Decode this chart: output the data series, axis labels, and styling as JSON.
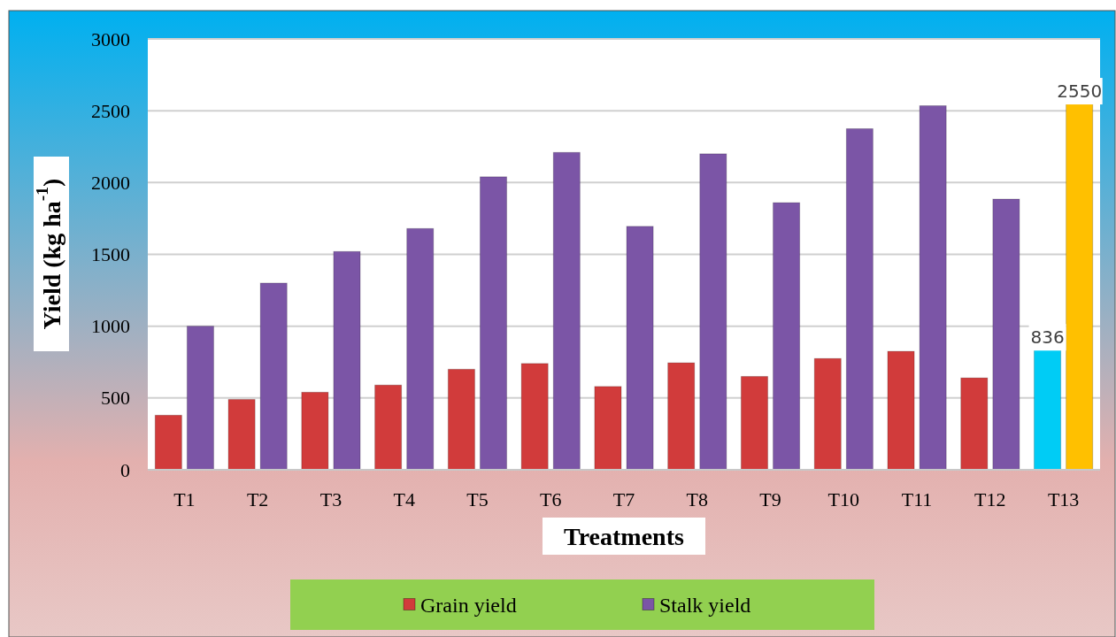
{
  "chart_data": {
    "type": "bar",
    "xlabel": "Treatments",
    "ylabel": "Yield (kg ha$^{-1}$)",
    "categories": [
      "T1",
      "T2",
      "T3",
      "T4",
      "T5",
      "T6",
      "T7",
      "T8",
      "T9",
      "T10",
      "T11",
      "T12",
      "T13"
    ],
    "series": [
      {
        "name": "Grain yield",
        "color": "#d13b3b",
        "colors": [
          "#d13b3b",
          "#d13b3b",
          "#d13b3b",
          "#d13b3b",
          "#d13b3b",
          "#d13b3b",
          "#d13b3b",
          "#d13b3b",
          "#d13b3b",
          "#d13b3b",
          "#d13b3b",
          "#d13b3b",
          "#00ccf5"
        ],
        "values": [
          380,
          490,
          540,
          590,
          700,
          740,
          580,
          745,
          650,
          775,
          825,
          640,
          836
        ],
        "value_labels": [
          null,
          null,
          null,
          null,
          null,
          null,
          null,
          null,
          null,
          null,
          null,
          null,
          "836"
        ]
      },
      {
        "name": "Stalk yield",
        "color": "#7b55a6",
        "colors": [
          "#7b55a6",
          "#7b55a6",
          "#7b55a6",
          "#7b55a6",
          "#7b55a6",
          "#7b55a6",
          "#7b55a6",
          "#7b55a6",
          "#7b55a6",
          "#7b55a6",
          "#7b55a6",
          "#7b55a6",
          "#ffc000"
        ],
        "values": [
          1000,
          1300,
          1520,
          1680,
          2040,
          2210,
          1695,
          2200,
          1860,
          2375,
          2535,
          1885,
          2550
        ],
        "value_labels": [
          null,
          null,
          null,
          null,
          null,
          null,
          null,
          null,
          null,
          null,
          null,
          null,
          "2550"
        ]
      }
    ],
    "ylim": [
      0,
      3000
    ],
    "yticks": [
      0,
      500,
      1000,
      1500,
      2000,
      2500,
      3000
    ],
    "grid": "y",
    "legend": "bottom"
  }
}
